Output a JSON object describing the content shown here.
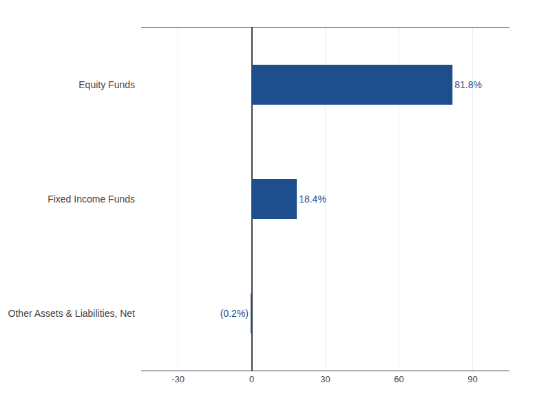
{
  "chart_data": {
    "type": "bar",
    "orientation": "horizontal",
    "categories": [
      "Other Assets & Liabilities, Net",
      "Fixed Income Funds",
      "Equity Funds"
    ],
    "values": [
      -0.2,
      18.4,
      81.8
    ],
    "value_labels": [
      "(0.2%)",
      "18.4%",
      "81.8%"
    ],
    "data_labels": true,
    "color": "#1F4E8C",
    "xlim": [
      -45,
      105
    ],
    "xticks": [
      -30,
      0,
      30,
      60,
      90
    ],
    "grid": true
  }
}
